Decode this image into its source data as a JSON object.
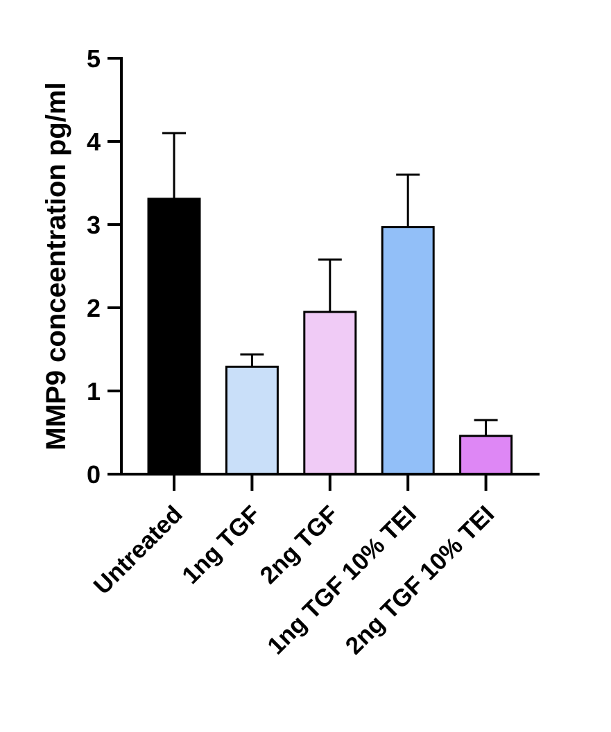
{
  "chart_data": {
    "type": "bar",
    "title": "",
    "xlabel": "",
    "ylabel": "MMP9 conceentration pg/ml",
    "ylim": [
      0,
      5
    ],
    "yticks": [
      0,
      1,
      2,
      3,
      4,
      5
    ],
    "grid": false,
    "legend": "none",
    "categories": [
      "Untreated",
      "1ng TGF",
      "2ng TGF",
      "1ng TGF 10% TEI",
      "2ng TGF 10% TEI"
    ],
    "values": [
      3.31,
      1.29,
      1.95,
      2.97,
      0.46
    ],
    "errors": [
      0.79,
      0.15,
      0.63,
      0.63,
      0.19
    ],
    "colors": [
      "#000000",
      "#c9dff9",
      "#f0cbf6",
      "#92bff8",
      "#de87f5"
    ],
    "edge_color": "#000000"
  }
}
